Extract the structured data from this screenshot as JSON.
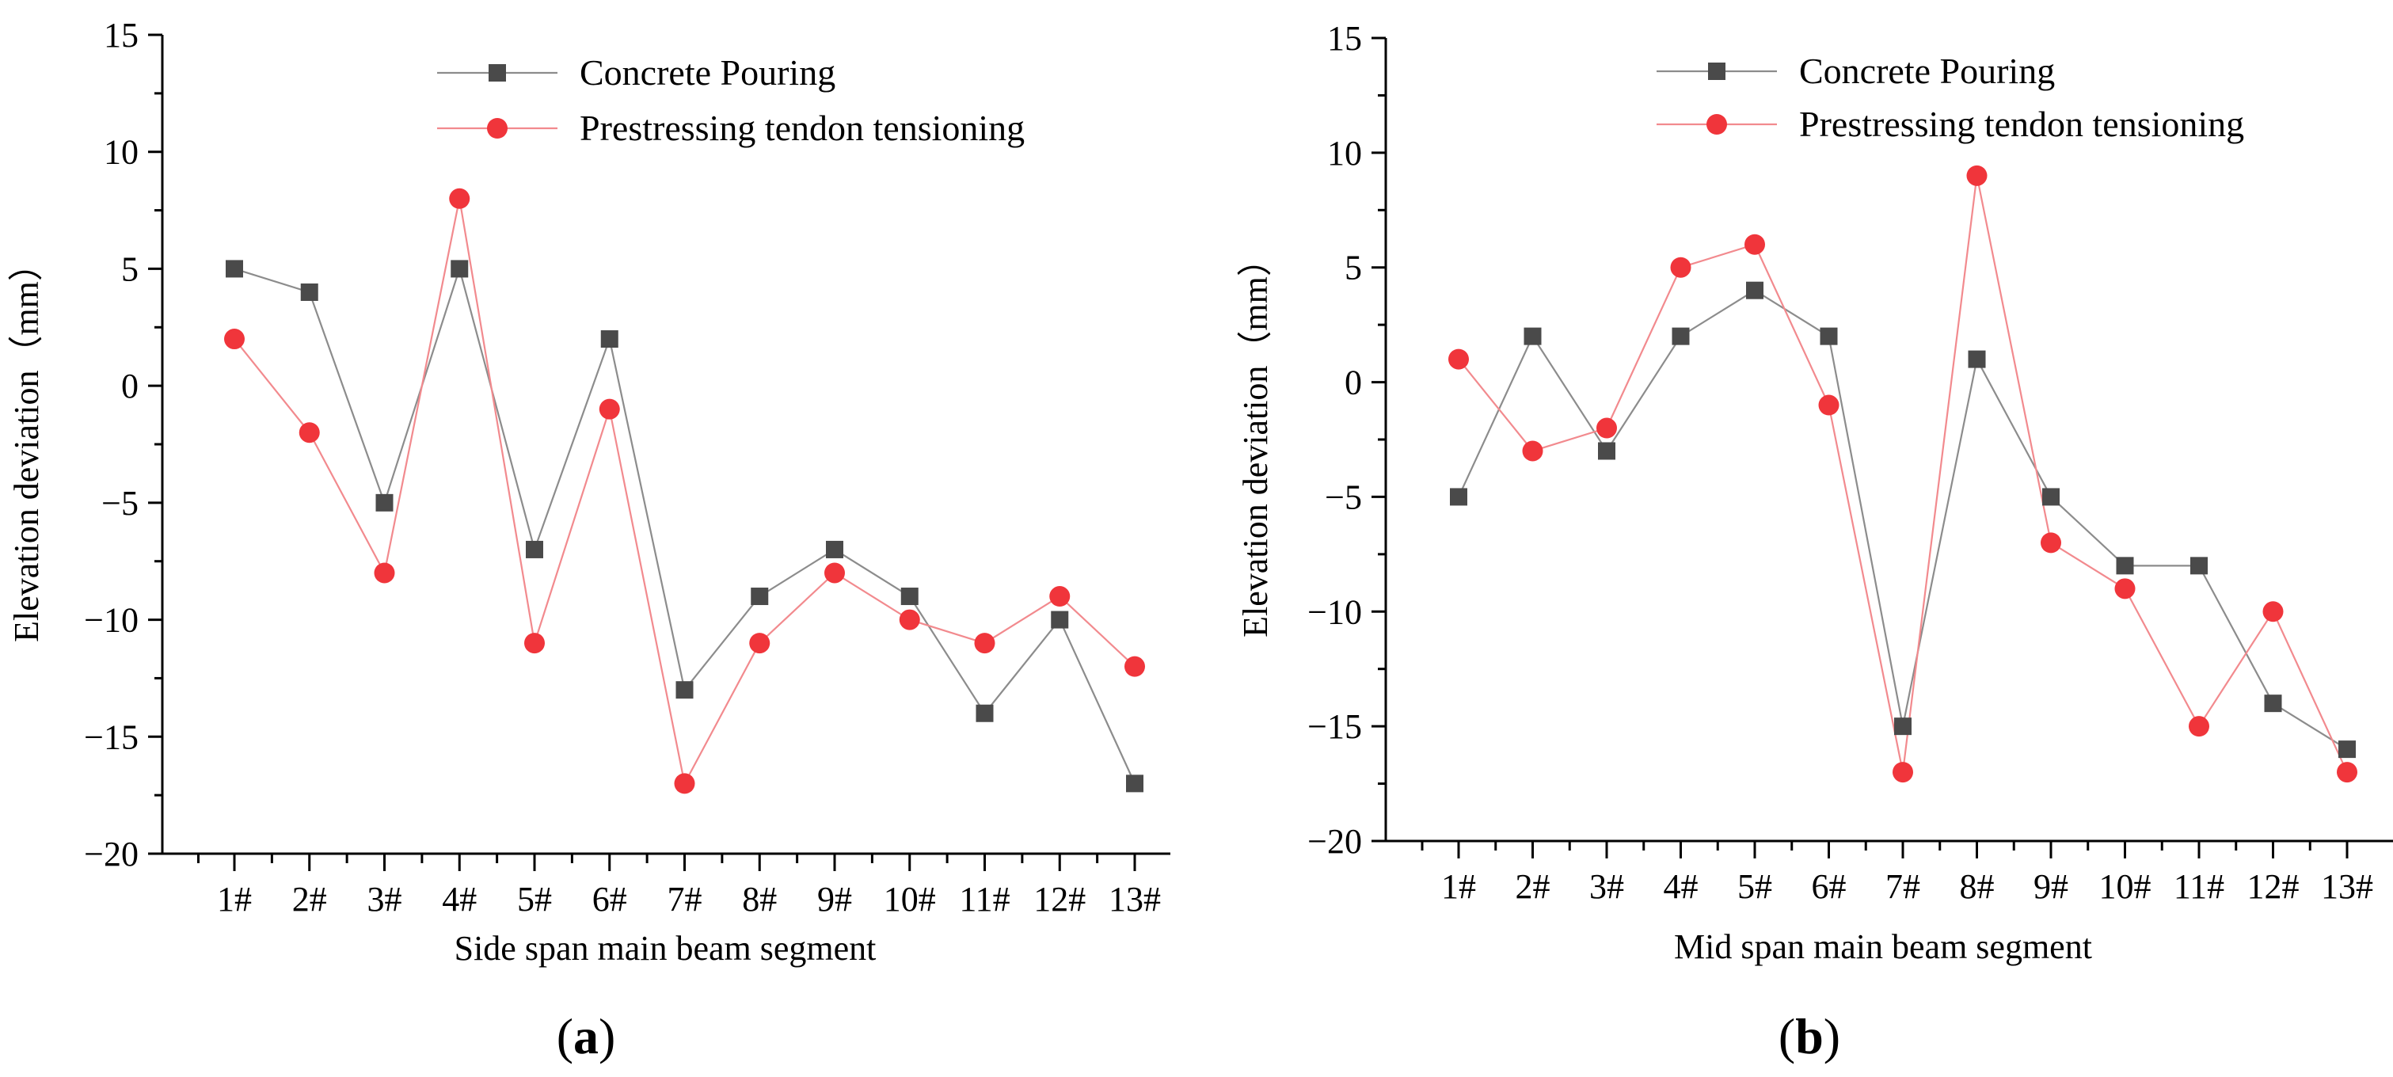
{
  "chart_data": [
    {
      "type": "line",
      "panel": "a",
      "xlabel": "Side span main beam segment",
      "ylabel": "Elevation deviation（mm）",
      "categories": [
        "1#",
        "2#",
        "3#",
        "4#",
        "5#",
        "6#",
        "7#",
        "8#",
        "9#",
        "10#",
        "11#",
        "12#",
        "13#"
      ],
      "ylim": [
        -20,
        15
      ],
      "yticks": [
        -20,
        -15,
        -10,
        -5,
        0,
        5,
        10,
        15
      ],
      "ytick_labels": [
        "−20",
        "−15",
        "−10",
        "−5",
        "0",
        "5",
        "10",
        "15"
      ],
      "legend_position": "top-center",
      "series": [
        {
          "name": "Concrete Pouring",
          "marker": "square",
          "color": "#4a4a4a",
          "line_color": "#8c8c8c",
          "values": [
            5,
            4,
            -5,
            5,
            -7,
            2,
            -13,
            -9,
            -7,
            -9,
            -14,
            -10,
            -17
          ]
        },
        {
          "name": "Prestressing tendon tensioning",
          "marker": "circle",
          "color": "#f0353b",
          "line_color": "#f28a8e",
          "values": [
            2,
            -2,
            -8,
            8,
            -11,
            -1,
            -17,
            -11,
            -8,
            -10,
            -11,
            -9,
            -12
          ]
        }
      ]
    },
    {
      "type": "line",
      "panel": "b",
      "xlabel": "Mid span main beam segment",
      "ylabel": "Elevation deviation（mm）",
      "categories": [
        "1#",
        "2#",
        "3#",
        "4#",
        "5#",
        "6#",
        "7#",
        "8#",
        "9#",
        "10#",
        "11#",
        "12#",
        "13#"
      ],
      "ylim": [
        -20,
        15
      ],
      "yticks": [
        -20,
        -15,
        -10,
        -5,
        0,
        5,
        10,
        15
      ],
      "ytick_labels": [
        "−20",
        "−15",
        "−10",
        "−5",
        "0",
        "5",
        "10",
        "15"
      ],
      "legend_position": "top-center",
      "series": [
        {
          "name": "Concrete Pouring",
          "marker": "square",
          "color": "#4a4a4a",
          "line_color": "#8c8c8c",
          "values": [
            -5,
            2,
            -3,
            2,
            4,
            2,
            -15,
            1,
            -5,
            -8,
            -8,
            -14,
            -16
          ]
        },
        {
          "name": "Prestressing tendon tensioning",
          "marker": "circle",
          "color": "#f0353b",
          "line_color": "#f28a8e",
          "values": [
            1,
            -3,
            -2,
            5,
            6,
            -1,
            -17,
            9,
            -7,
            -9,
            -15,
            -10,
            -17
          ]
        }
      ]
    }
  ],
  "panel_labels": [
    {
      "open": "(",
      "letter": "a",
      "close": ")"
    },
    {
      "open": "(",
      "letter": "b",
      "close": ")"
    }
  ]
}
